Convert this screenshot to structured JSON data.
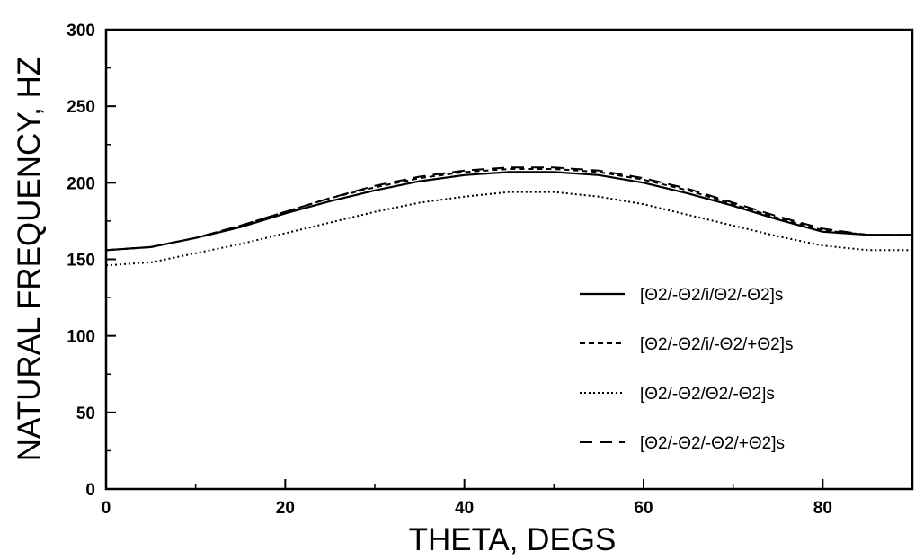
{
  "chart_data": {
    "type": "line",
    "xlabel": "THETA, DEGS",
    "ylabel": "NATURAL FREQUENCY, HZ",
    "xlim": [
      0,
      90
    ],
    "ylim": [
      0,
      300
    ],
    "xticks": [
      0,
      20,
      40,
      60,
      80
    ],
    "yticks": [
      0,
      50,
      100,
      150,
      200,
      250,
      300
    ],
    "grid": false,
    "legend_position": "right",
    "x": [
      0,
      5,
      10,
      15,
      20,
      25,
      30,
      35,
      40,
      45,
      50,
      55,
      60,
      65,
      70,
      75,
      80,
      85,
      90
    ],
    "series": [
      {
        "name": "[Θ2/-Θ2/i/Θ2/-Θ2]s",
        "style": "solid",
        "values": [
          156,
          158,
          164,
          171,
          180,
          188,
          195,
          201,
          205,
          207,
          207,
          205,
          200,
          193,
          185,
          176,
          168,
          166,
          166
        ]
      },
      {
        "name": "[Θ2/-Θ2/i/-Θ2/+Θ2]s",
        "style": "short-dash",
        "values": [
          156,
          158,
          164,
          172,
          181,
          190,
          197,
          203,
          207,
          209,
          209,
          207,
          202,
          195,
          186,
          177,
          169,
          166,
          166
        ]
      },
      {
        "name": "[Θ2/-Θ2/Θ2/-Θ2]s",
        "style": "dotted",
        "values": [
          146,
          148,
          154,
          160,
          167,
          174,
          181,
          187,
          191,
          194,
          194,
          191,
          186,
          179,
          172,
          165,
          159,
          156,
          156
        ]
      },
      {
        "name": "[Θ2/-Θ2/-Θ2/+Θ2]s",
        "style": "long-dash",
        "values": [
          156,
          158,
          164,
          172,
          181,
          190,
          198,
          204,
          208,
          210,
          210,
          208,
          203,
          196,
          187,
          178,
          170,
          166,
          166
        ]
      }
    ]
  }
}
